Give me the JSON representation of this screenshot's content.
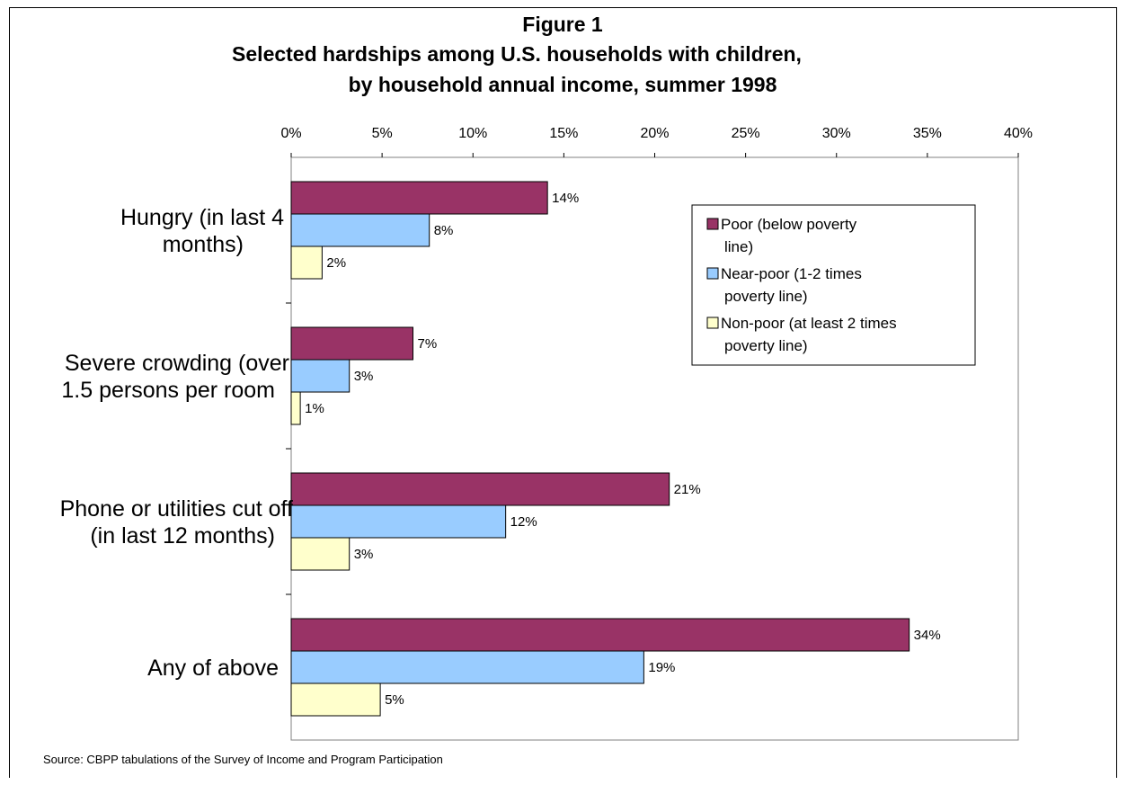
{
  "chart_data": {
    "type": "bar",
    "orientation": "horizontal",
    "title": [
      "Figure 1",
      "Selected hardships among U.S. households with children,",
      "by household annual income, summer 1998"
    ],
    "xlim": [
      0,
      40
    ],
    "x_ticks": [
      "0%",
      "5%",
      "10%",
      "15%",
      "20%",
      "25%",
      "30%",
      "35%",
      "40%"
    ],
    "categories": [
      [
        "Hungry (in last 4",
        "months)"
      ],
      [
        "Severe crowding (over",
        "1.5 persons per room"
      ],
      [
        "Phone or utilities cut off",
        "(in last 12 months)"
      ],
      [
        "Any of above"
      ]
    ],
    "series": [
      {
        "name": [
          "Poor (below poverty",
          "line)"
        ],
        "color": "#993366",
        "values": [
          14.1,
          6.7,
          20.8,
          34.0
        ],
        "labels": [
          "14%",
          "7%",
          "21%",
          "34%"
        ]
      },
      {
        "name": [
          "Near-poor (1-2 times",
          "poverty line)"
        ],
        "color": "#99CCFF",
        "values": [
          7.6,
          3.2,
          11.8,
          19.4
        ],
        "labels": [
          "8%",
          "3%",
          "12%",
          "19%"
        ]
      },
      {
        "name": [
          "Non-poor (at least 2 times",
          "poverty line)"
        ],
        "color": "#FFFFCC",
        "values": [
          1.7,
          0.5,
          3.2,
          4.9
        ],
        "labels": [
          "2%",
          "1%",
          "3%",
          "5%"
        ]
      }
    ],
    "legend_position": "top-right",
    "grid": false,
    "source": "Source: CBPP tabulations of the Survey of Income and Program Participation"
  }
}
